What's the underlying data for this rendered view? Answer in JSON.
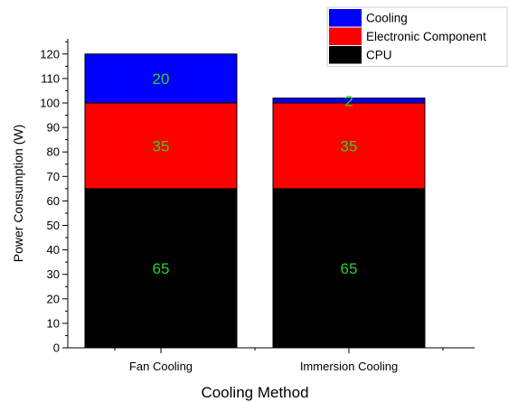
{
  "chart_data": {
    "type": "bar",
    "stacked": true,
    "title": "",
    "xlabel": "Cooling Method",
    "ylabel": "Power Consumption (W)",
    "categories": [
      "Fan Cooling",
      "Immersion Cooling"
    ],
    "series": [
      {
        "name": "CPU",
        "values": [
          65,
          65
        ],
        "color": "#000000"
      },
      {
        "name": "Electronic Component",
        "values": [
          35,
          35
        ],
        "color": "#ff0000"
      },
      {
        "name": "Cooling",
        "values": [
          20,
          2
        ],
        "color": "#0000ff"
      }
    ],
    "ylim": [
      0,
      125
    ],
    "yticks": [
      0,
      10,
      20,
      30,
      40,
      50,
      60,
      70,
      80,
      90,
      100,
      110,
      120
    ],
    "label_color": "#33cc33",
    "legend_order": [
      "Cooling",
      "Electronic Component",
      "CPU"
    ],
    "legend_position": "top-right",
    "grid": false
  }
}
